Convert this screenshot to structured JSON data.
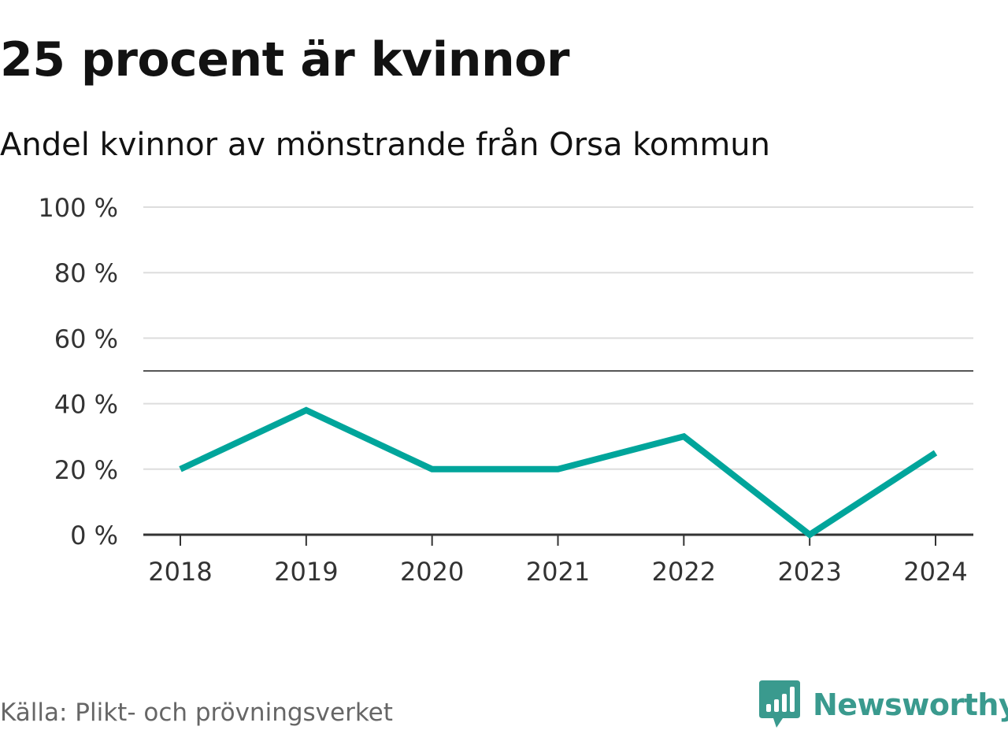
{
  "title": "25 procent är kvinnor",
  "subtitle": "Andel kvinnor av mönstrande från Orsa kommun",
  "source": "Källa: Plikt- och prövningsverket",
  "brand": {
    "name": "Newsworthy",
    "logo_icon": "newsworthy-bar-chart-logo-icon",
    "color": "#3a9a8e"
  },
  "colors": {
    "line": "#00a59b",
    "grid": "#dddddd",
    "reference": "#555555",
    "axis": "#333333"
  },
  "chart_data": {
    "type": "line",
    "title": "25 procent är kvinnor",
    "subtitle": "Andel kvinnor av mönstrande från Orsa kommun",
    "categories": [
      "2018",
      "2019",
      "2020",
      "2021",
      "2022",
      "2023",
      "2024"
    ],
    "series": [
      {
        "values": [
          20,
          38,
          20,
          20,
          30,
          0,
          25
        ]
      }
    ],
    "y_ticks": [
      "0 %",
      "20 %",
      "40 %",
      "60 %",
      "80 %",
      "100 %"
    ],
    "y_tick_values": [
      0,
      20,
      40,
      60,
      80,
      100
    ],
    "ylim": [
      0,
      100
    ],
    "reference_line": 50,
    "grid": true,
    "legend": "none"
  }
}
